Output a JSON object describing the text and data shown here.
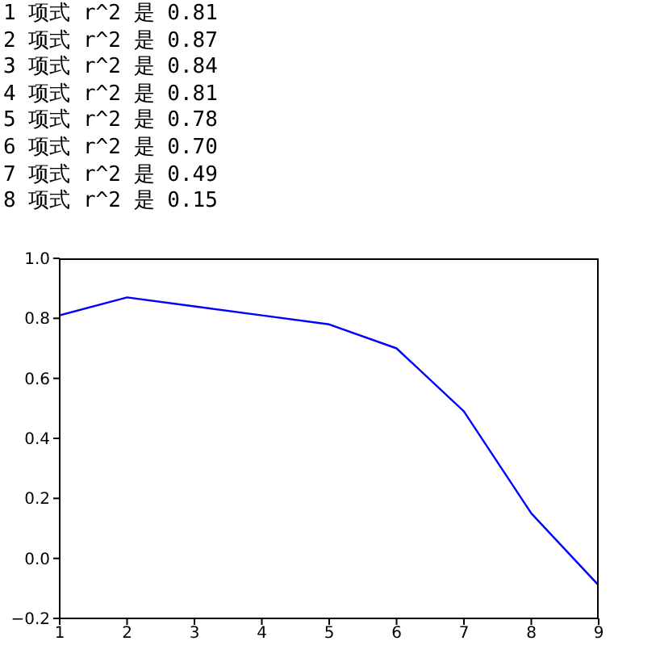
{
  "chart_data": {
    "type": "line",
    "annotations": [
      "1 项式 r^2 是 0.81",
      "2 项式 r^2 是 0.87",
      "3 项式 r^2 是 0.84",
      "4 项式 r^2 是 0.81",
      "5 项式 r^2 是 0.78",
      "6 项式 r^2 是 0.70",
      "7 项式 r^2 是 0.49",
      "8 项式 r^2 是 0.15"
    ],
    "x": [
      1,
      2,
      3,
      4,
      5,
      6,
      7,
      8,
      9
    ],
    "series": [
      {
        "color": "#0000ff",
        "values": [
          0.81,
          0.87,
          0.84,
          0.81,
          0.78,
          0.7,
          0.49,
          0.15,
          -0.09
        ]
      }
    ],
    "xlim": [
      1,
      9
    ],
    "xticks": [
      1,
      2,
      3,
      4,
      5,
      6,
      7,
      8,
      9
    ],
    "ylim": [
      -0.2,
      1.0
    ],
    "yticks": [
      {
        "value": -0.2,
        "label": "−0.2"
      },
      {
        "value": 0,
        "label": "0.0"
      },
      0.2,
      0.4,
      0.6,
      0.8,
      {
        "value": 1,
        "label": "1.0"
      }
    ],
    "grid": false,
    "legend": false,
    "marker": "none",
    "line_style": "solid"
  }
}
